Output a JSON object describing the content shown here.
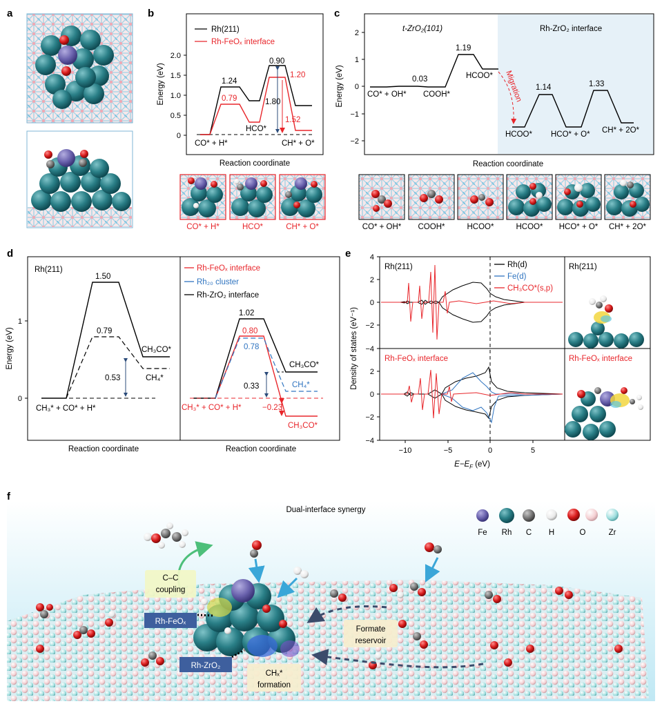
{
  "figure": {
    "panel_labels": [
      "a",
      "b",
      "c",
      "d",
      "e",
      "f"
    ],
    "colors": {
      "red": "#e8262b",
      "blue": "#2f74c0",
      "black": "#000000",
      "teal_atom": "#2a7f87",
      "fe_atom": "#6a62ad",
      "o_atom": "#d71a1a",
      "c_atom": "#777777",
      "h_atom": "#f0f0f0",
      "zr_atom": "#9fdede",
      "zr_o_atom": "#f4cfd2",
      "highlight_bg": "#e6f1f8"
    }
  },
  "panel_b": {
    "legend": [
      "Rh(211)",
      "Rh-FeOₓ interface"
    ],
    "ylabel": "Energy (eV)",
    "xlabel": "Reaction coordinate",
    "yticks": [
      "0",
      "0.5",
      "1.0",
      "1.5",
      "2.0"
    ],
    "labels": {
      "rh_first": "1.24",
      "rh_peak": "0.90",
      "rh_gap": "1.80",
      "fe_first": "0.79",
      "fe_peak": "1.20",
      "fe_gap": "1.52",
      "hco": "HCO*",
      "start": "CO* + H*",
      "end": "CH* + O*"
    },
    "insets": [
      "CO* + H*",
      "HCO*",
      "CH* + O*"
    ]
  },
  "panel_c": {
    "ylabel": "Energy (eV)",
    "xlabel": "Reaction coordinate",
    "yticks": [
      "2",
      "1",
      "0",
      "−1",
      "−2"
    ],
    "left_title": "t-ZrO₂(101)",
    "right_title": "Rh-ZrO₂ interface",
    "migration": "Migration",
    "labels": {
      "v003": "0.03",
      "v119": "1.19",
      "v114": "1.14",
      "v133": "1.33",
      "s1": "CO* + OH*",
      "s2": "COOH*",
      "s3": "HCOO*",
      "s4": "HCOO*",
      "s5": "HCO* + O*",
      "s6": "CH* + 2O*"
    },
    "insets": [
      "CO* + OH*",
      "COOH*",
      "HCOO*",
      "HCOO*",
      "HCO* + O*",
      "CH* + 2O*"
    ]
  },
  "panel_d": {
    "ylabel": "Energy (eV)",
    "xlabel_left": "Reaction coordinate",
    "xlabel_right": "Reaction coordinate",
    "yticks": [
      "0",
      "1"
    ],
    "left_title": "Rh(211)",
    "left_labels": {
      "v150": "1.50",
      "v079": "0.79",
      "v053": "0.53",
      "ch3co": "CH₃CO*",
      "ch4": "CH₄*",
      "start": "CH₃* + CO* + H*"
    },
    "legend": [
      "Rh-FeOₓ interface",
      "Rh₂₀ cluster",
      "Rh-ZrO₂ interface"
    ],
    "right_labels": {
      "v102": "1.02",
      "v080": "0.80",
      "v078": "0.78",
      "v033": "0.33",
      "vm023": "−0.23",
      "ch3co_black": "CH₃CO*",
      "ch4_blue": "CH₄*",
      "start_red": "CH₃* + CO* + H*",
      "ch3co_red": "CH₃CO*"
    }
  },
  "panel_e": {
    "ylabel": "Density of states (eV⁻¹)",
    "xlabel": "E−E",
    "xlabel_sub": "F",
    "xlabel_unit": " (eV)",
    "xticks": [
      "−10",
      "−5",
      "0",
      "5"
    ],
    "yticks_top": [
      "4",
      "2",
      "0",
      "−2",
      "−4"
    ],
    "yticks_bottom": [
      "2",
      "0",
      "−2",
      "−4"
    ],
    "top_title": "Rh(211)",
    "bottom_title": "Rh-FeOₓ interface",
    "legend": [
      "Rh(d)",
      "Fe(d)",
      "CH₃CO*(s,p)"
    ],
    "side_titles": [
      "Rh(211)",
      "Rh-FeOₓ interface"
    ]
  },
  "panel_f": {
    "title": "Dual-interface synergy",
    "atom_legend": [
      "Fe",
      "Rh",
      "C",
      "H",
      "O",
      "Zr"
    ],
    "tags": {
      "cc": "C–C\ncoupling",
      "cc_1": "C–C",
      "cc_2": "coupling",
      "rhfeox": "Rh-FeOₓ",
      "rhzro2": "Rh-ZrO₂",
      "formate_1": "Formate",
      "formate_2": "reservoir",
      "ch4_1": "CHₓ*",
      "ch4_2": "formation"
    }
  }
}
